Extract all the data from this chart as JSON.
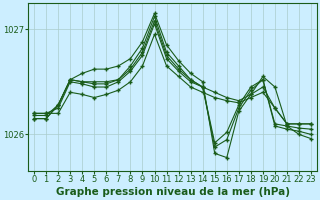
{
  "title": "Graphe pression niveau de la mer (hPa)",
  "bg_color": "#cceeff",
  "plot_bg_color": "#cceeff",
  "grid_color": "#aacccc",
  "line_color": "#1a5c1a",
  "x": [
    0,
    1,
    2,
    3,
    4,
    5,
    6,
    7,
    8,
    9,
    10,
    11,
    12,
    13,
    14,
    15,
    16,
    17,
    18,
    19,
    20,
    21,
    22,
    23
  ],
  "series": [
    [
      1026.2,
      1026.2,
      1026.2,
      1026.4,
      1026.38,
      1026.35,
      1026.38,
      1026.42,
      1026.5,
      1026.65,
      1026.95,
      1026.65,
      1026.55,
      1026.45,
      1026.4,
      1026.35,
      1026.32,
      1026.3,
      1026.35,
      1026.4,
      1026.25,
      1026.1,
      1026.1,
      1026.1
    ],
    [
      1026.2,
      1026.2,
      1026.25,
      1026.5,
      1026.48,
      1026.45,
      1026.45,
      1026.5,
      1026.6,
      1026.75,
      1027.05,
      1026.72,
      1026.6,
      1026.5,
      1026.45,
      1026.4,
      1026.35,
      1026.32,
      1026.38,
      1026.45,
      1026.25,
      1026.1,
      1026.1,
      1026.1
    ],
    [
      1026.18,
      1026.18,
      1026.28,
      1026.52,
      1026.5,
      1026.48,
      1026.48,
      1026.52,
      1026.62,
      1026.78,
      1027.08,
      1026.75,
      1026.62,
      1026.52,
      1026.45,
      1025.92,
      1026.02,
      1026.28,
      1026.45,
      1026.52,
      1026.1,
      1026.08,
      1026.06,
      1026.05
    ],
    [
      1026.15,
      1026.15,
      1026.28,
      1026.52,
      1026.5,
      1026.5,
      1026.5,
      1026.52,
      1026.65,
      1026.82,
      1027.12,
      1026.78,
      1026.65,
      1026.52,
      1026.45,
      1025.88,
      1025.95,
      1026.25,
      1026.42,
      1026.52,
      1026.08,
      1026.05,
      1026.03,
      1026.0
    ],
    [
      1026.15,
      1026.15,
      1026.28,
      1026.52,
      1026.58,
      1026.62,
      1026.62,
      1026.65,
      1026.72,
      1026.88,
      1027.15,
      1026.85,
      1026.7,
      1026.58,
      1026.5,
      1025.82,
      1025.78,
      1026.22,
      1026.38,
      1026.55,
      1026.45,
      1026.08,
      1026.0,
      1025.96
    ]
  ],
  "ylim_min": 1025.65,
  "ylim_max": 1027.25,
  "yticks": [
    1026.0,
    1027.0
  ],
  "ytick_labels": [
    "1026",
    "1027"
  ],
  "marker": "+",
  "markersize": 3.5,
  "markeredgewidth": 1.0,
  "linewidth": 0.8,
  "title_fontsize": 7.5,
  "tick_fontsize": 6.0
}
